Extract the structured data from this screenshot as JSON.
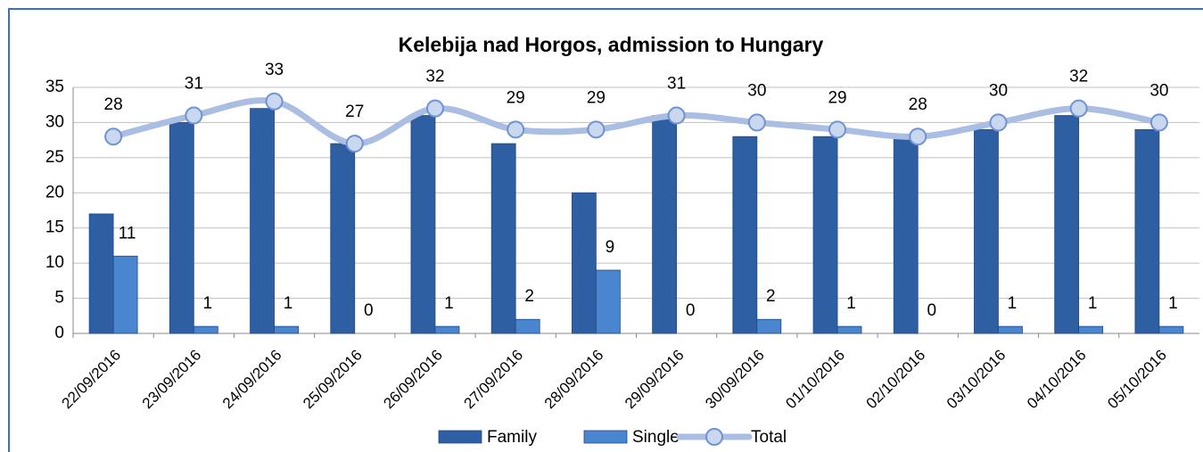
{
  "chart_data": {
    "type": "bar",
    "title": "Kelebija nad Horgos, admission to Hungary",
    "categories": [
      "22/09/2016",
      "23/09/2016",
      "24/09/2016",
      "25/09/2016",
      "26/09/2016",
      "27/09/2016",
      "28/09/2016",
      "29/09/2016",
      "30/09/2016",
      "01/10/2016",
      "02/10/2016",
      "03/10/2016",
      "04/10/2016",
      "05/10/2016"
    ],
    "series": [
      {
        "name": "Family",
        "type": "bar",
        "color": "#2e5fa3",
        "values": [
          17,
          30,
          32,
          27,
          31,
          27,
          20,
          31,
          28,
          28,
          28,
          29,
          31,
          29
        ]
      },
      {
        "name": "Single",
        "type": "bar",
        "color": "#4a86d0",
        "values": [
          11,
          1,
          1,
          0,
          1,
          2,
          9,
          0,
          2,
          1,
          0,
          1,
          1,
          1
        ],
        "labels": true
      },
      {
        "name": "Total",
        "type": "line",
        "color": "#aabde3",
        "values": [
          28,
          31,
          33,
          27,
          32,
          29,
          29,
          31,
          30,
          29,
          28,
          30,
          32,
          30
        ],
        "labels": true
      }
    ],
    "ylim": [
      0,
      35
    ],
    "yticks": [
      0,
      5,
      10,
      15,
      20,
      25,
      30,
      35
    ],
    "grid": true,
    "legend": "bottom"
  }
}
